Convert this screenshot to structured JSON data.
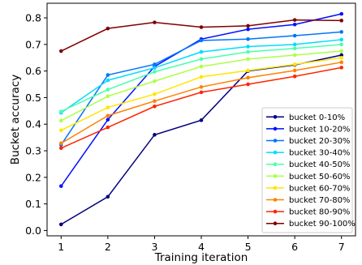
{
  "chart_data": {
    "type": "line",
    "title": "",
    "xlabel": "Training iteration",
    "ylabel": "Bucket accuracy",
    "x": [
      1,
      2,
      3,
      4,
      5,
      6,
      7
    ],
    "xlim": [
      0.7,
      7.3
    ],
    "ylim": [
      -0.02,
      0.855
    ],
    "xticks": [
      "1",
      "2",
      "3",
      "4",
      "5",
      "6",
      "7"
    ],
    "yticks": [
      "0.0",
      "0.1",
      "0.2",
      "0.3",
      "0.4",
      "0.5",
      "0.6",
      "0.7",
      "0.8"
    ],
    "grid": false,
    "legend_position": "lower-right",
    "series": [
      {
        "name": "bucket 0-10%",
        "color": "#00007f",
        "values": [
          0.023,
          0.127,
          0.36,
          0.415,
          0.6,
          0.623,
          0.66
        ]
      },
      {
        "name": "bucket 10-20%",
        "color": "#0010ff",
        "values": [
          0.167,
          0.417,
          0.617,
          0.72,
          0.757,
          0.775,
          0.815
        ]
      },
      {
        "name": "bucket 20-30%",
        "color": "#0074ff",
        "values": [
          0.322,
          0.585,
          0.625,
          0.715,
          0.72,
          0.733,
          0.747
        ]
      },
      {
        "name": "bucket 30-40%",
        "color": "#00dcfe",
        "values": [
          0.443,
          0.565,
          0.612,
          0.672,
          0.692,
          0.7,
          0.718
        ]
      },
      {
        "name": "bucket 40-50%",
        "color": "#49ffad",
        "values": [
          0.448,
          0.53,
          0.597,
          0.645,
          0.672,
          0.685,
          0.7
        ]
      },
      {
        "name": "bucket 50-60%",
        "color": "#adff49",
        "values": [
          0.413,
          0.505,
          0.562,
          0.617,
          0.645,
          0.66,
          0.675
        ]
      },
      {
        "name": "bucket 60-70%",
        "color": "#ffe500",
        "values": [
          0.377,
          0.463,
          0.513,
          0.578,
          0.602,
          0.625,
          0.65
        ]
      },
      {
        "name": "bucket 70-80%",
        "color": "#ff8200",
        "values": [
          0.328,
          0.432,
          0.487,
          0.54,
          0.575,
          0.602,
          0.633
        ]
      },
      {
        "name": "bucket 80-90%",
        "color": "#ff2400",
        "values": [
          0.31,
          0.388,
          0.467,
          0.52,
          0.55,
          0.58,
          0.613
        ]
      },
      {
        "name": "bucket 90-100%",
        "color": "#7f0000",
        "values": [
          0.675,
          0.76,
          0.783,
          0.765,
          0.77,
          0.792,
          0.79
        ]
      }
    ]
  }
}
